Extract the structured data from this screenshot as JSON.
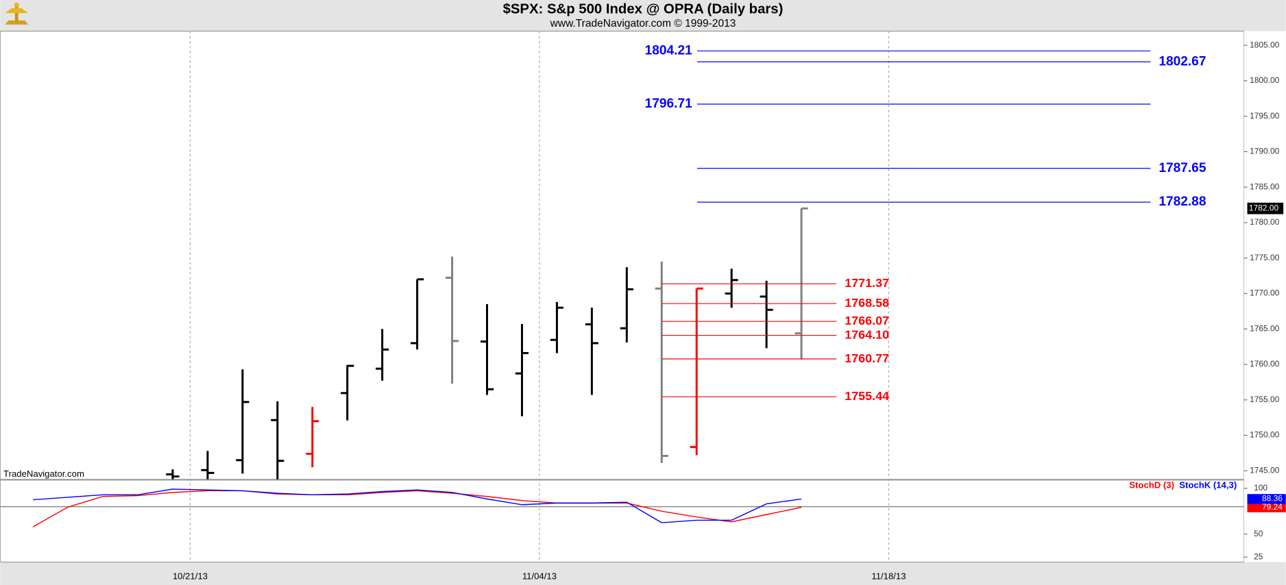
{
  "chart_data": [
    {
      "type": "ohlc",
      "title": "$SPX:  S&p 500 Index @ OPRA  (Daily bars)",
      "subtitle": "www.TradeNavigator.com © 1999-2013",
      "watermark": "TradeNavigator.com",
      "categories": [
        null,
        null,
        null,
        null,
        null,
        "10/21/13",
        null,
        null,
        null,
        null,
        null,
        null,
        null,
        null,
        null,
        "11/04/13",
        null,
        null,
        null,
        null,
        null,
        null,
        null,
        null,
        null,
        "11/18/13",
        null,
        null,
        null,
        null,
        null,
        null,
        null,
        null,
        null
      ],
      "open": [
        null,
        null,
        null,
        null,
        1744.5,
        1745.1,
        1746.5,
        1752.15,
        1747.4,
        1755.96,
        1759.4,
        1763.0,
        1772.23,
        1763.23,
        1758.73,
        1763.46,
        1765.65,
        1765.1,
        1770.7,
        1748.35,
        1770.0,
        1769.57,
        1764.38,
        null,
        null,
        null,
        null,
        null,
        null,
        null,
        null,
        null,
        null,
        null,
        null
      ],
      "high": [
        null,
        null,
        null,
        null,
        1745.2,
        1747.8,
        1759.3,
        1754.8,
        1754.0,
        1759.9,
        1765.0,
        1772.0,
        1775.2,
        1768.5,
        1765.7,
        1768.8,
        1768.0,
        1773.7,
        1774.5,
        1770.7,
        1773.5,
        1771.8,
        1782.0,
        null,
        null,
        null,
        null,
        null,
        null,
        null,
        null,
        null,
        null,
        null,
        null
      ],
      "low": [
        null,
        null,
        null,
        null,
        1742.0,
        1743.5,
        1744.6,
        1743.0,
        1745.5,
        1752.1,
        1757.7,
        1762.1,
        1757.3,
        1755.7,
        1752.7,
        1761.6,
        1755.7,
        1763.1,
        1746.1,
        1747.2,
        1768.0,
        1762.3,
        1760.7,
        null,
        null,
        null,
        null,
        null,
        null,
        null,
        null,
        null,
        null,
        null,
        null
      ],
      "close": [
        null,
        null,
        null,
        null,
        1744.2,
        1744.7,
        1754.7,
        1746.4,
        1752.0,
        1759.8,
        1762.1,
        1772.0,
        1763.3,
        1756.5,
        1761.6,
        1768.0,
        1763.0,
        1770.6,
        1747.1,
        1770.7,
        1771.9,
        1767.7,
        1782.0,
        null,
        null,
        null,
        null,
        null,
        null,
        null,
        null,
        null,
        null,
        null,
        null
      ],
      "colors": [
        null,
        null,
        null,
        null,
        "#000000",
        "#000000",
        "#000000",
        "#000000",
        "#ff0000",
        "#000000",
        "#000000",
        "#000000",
        "#808080",
        "#000000",
        "#000000",
        "#000000",
        "#000000",
        "#000000",
        "#808080",
        "#ff0000",
        "#000000",
        "#000000",
        "#808080",
        null,
        null,
        null,
        null,
        null,
        null,
        null,
        null,
        null,
        null,
        null,
        null
      ],
      "last_price": {
        "value": 1782,
        "label": "1782.00"
      },
      "resistance": {
        "color": "#0000ff",
        "values": [
          1804.21,
          1802.67,
          1796.71,
          1787.65,
          1782.88
        ],
        "value_labels": [
          "1804.21",
          "1802.67",
          "1796.71",
          "1787.65",
          "1782.88"
        ],
        "label_side": [
          "left",
          "right",
          "left",
          "right",
          "right"
        ]
      },
      "support": {
        "color": "#ff0000",
        "values": [
          1771.37,
          1768.58,
          1766.07,
          1764.1,
          1760.77,
          1755.44
        ],
        "value_labels": [
          "1771.37",
          "1768.58",
          "1766.07",
          "1764.10",
          "1760.77",
          "1755.44"
        ],
        "label_side": [
          "right",
          "right",
          "right",
          "right",
          "right",
          "right"
        ]
      },
      "ylim": [
        1743.8,
        1807
      ],
      "yticks": [
        {
          "value": 1745,
          "label": "1745.00"
        },
        {
          "value": 1750,
          "label": "1750.00"
        },
        {
          "value": 1755,
          "label": "1755.00"
        },
        {
          "value": 1760,
          "label": "1760.00"
        },
        {
          "value": 1765,
          "label": "1765.00"
        },
        {
          "value": 1770,
          "label": "1770.00"
        },
        {
          "value": 1775,
          "label": "1775.00"
        },
        {
          "value": 1780,
          "label": "1780.00"
        },
        {
          "value": 1785,
          "label": "1785.00"
        },
        {
          "value": 1790,
          "label": "1790.00"
        },
        {
          "value": 1795,
          "label": "1795.00"
        },
        {
          "value": 1800,
          "label": "1800.00"
        },
        {
          "value": 1805,
          "label": "1805.00"
        }
      ]
    },
    {
      "type": "line",
      "ylim": [
        19.6,
        108.9
      ],
      "yticks": [
        25,
        50,
        100
      ],
      "reference_line": 80,
      "series": [
        {
          "name": "StochD (3)",
          "color": "#ff0000",
          "last_value_label": "79.24",
          "values": [
            58.0,
            79.5,
            91.1,
            92.0,
            95.5,
            97.3,
            97.3,
            93.8,
            92.9,
            92.9,
            95.5,
            97.3,
            94.6,
            91.1,
            86.6,
            83.9,
            83.9,
            83.9,
            75.0,
            68.75,
            63.4,
            71.4,
            79.24,
            null,
            null,
            null,
            null,
            null,
            null,
            null,
            null,
            null,
            null,
            null,
            null
          ]
        },
        {
          "name": "StochK (14,3)",
          "color": "#0000ff",
          "last_value_label": "88.36",
          "values": [
            87.5,
            90.2,
            92.9,
            92.9,
            99.1,
            98.2,
            97.3,
            94.6,
            92.9,
            93.8,
            96.4,
            98.2,
            95.5,
            88.4,
            82.1,
            83.9,
            83.9,
            84.8,
            62.5,
            65.2,
            65.2,
            83.0,
            88.36,
            null,
            null,
            null,
            null,
            null,
            null,
            null,
            null,
            null,
            null,
            null,
            null
          ]
        }
      ]
    }
  ]
}
